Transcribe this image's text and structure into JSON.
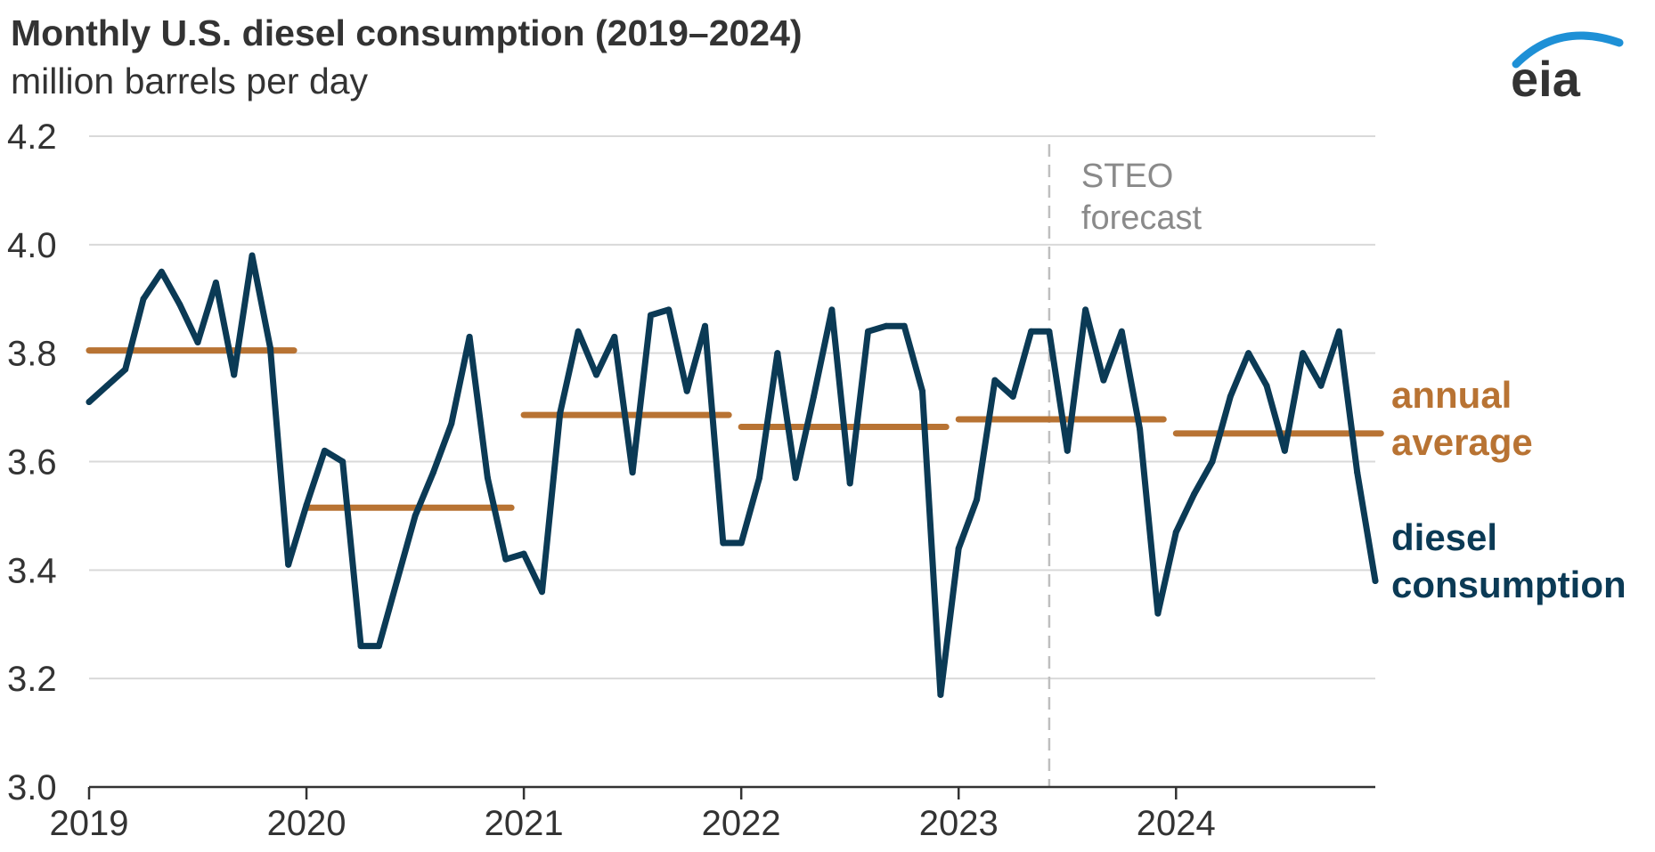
{
  "title": "Monthly U.S. diesel consumption (2019–2024)",
  "subtitle": "million barrels per day",
  "logo_text": "eia",
  "colors": {
    "consumption": "#0b3a55",
    "average": "#b87333",
    "grid": "#d9d9d9",
    "forecast_line": "#bfbfbf",
    "text": "#333333",
    "logo_arc": "#1e90d6"
  },
  "chart_data": {
    "type": "line",
    "title": "Monthly U.S. diesel consumption (2019–2024)",
    "ylabel": "million barrels per day",
    "ylim": [
      3.0,
      4.2
    ],
    "yticks": [
      "3.0",
      "3.2",
      "3.4",
      "3.6",
      "3.8",
      "4.0",
      "4.2"
    ],
    "xticks": [
      "2019",
      "2020",
      "2021",
      "2022",
      "2023",
      "2024"
    ],
    "grid": true,
    "forecast_start": "2023-06",
    "forecast_label": [
      "STEO",
      "forecast"
    ],
    "series": [
      {
        "name": "diesel consumption",
        "label_lines": [
          "diesel",
          "consumption"
        ],
        "start": "2019-01",
        "values": [
          3.71,
          3.74,
          3.77,
          3.9,
          3.95,
          3.89,
          3.82,
          3.93,
          3.76,
          3.98,
          3.81,
          3.41,
          3.52,
          3.62,
          3.6,
          3.26,
          3.26,
          3.38,
          3.5,
          3.58,
          3.67,
          3.83,
          3.57,
          3.42,
          3.43,
          3.36,
          3.69,
          3.84,
          3.76,
          3.83,
          3.58,
          3.87,
          3.88,
          3.73,
          3.85,
          3.45,
          3.45,
          3.57,
          3.8,
          3.57,
          3.72,
          3.88,
          3.56,
          3.84,
          3.85,
          3.85,
          3.73,
          3.17,
          3.44,
          3.53,
          3.75,
          3.72,
          3.84,
          3.84,
          3.62,
          3.88,
          3.75,
          3.84,
          3.66,
          3.32,
          3.47,
          3.54,
          3.6,
          3.72,
          3.8,
          3.74,
          3.62,
          3.8,
          3.74,
          3.84,
          3.58,
          3.38
        ]
      },
      {
        "name": "annual average",
        "label_lines": [
          "annual",
          "average"
        ],
        "years": [
          "2019",
          "2020",
          "2021",
          "2022",
          "2023",
          "2024"
        ],
        "values": [
          3.805,
          3.515,
          3.686,
          3.664,
          3.678,
          3.652
        ]
      }
    ]
  }
}
